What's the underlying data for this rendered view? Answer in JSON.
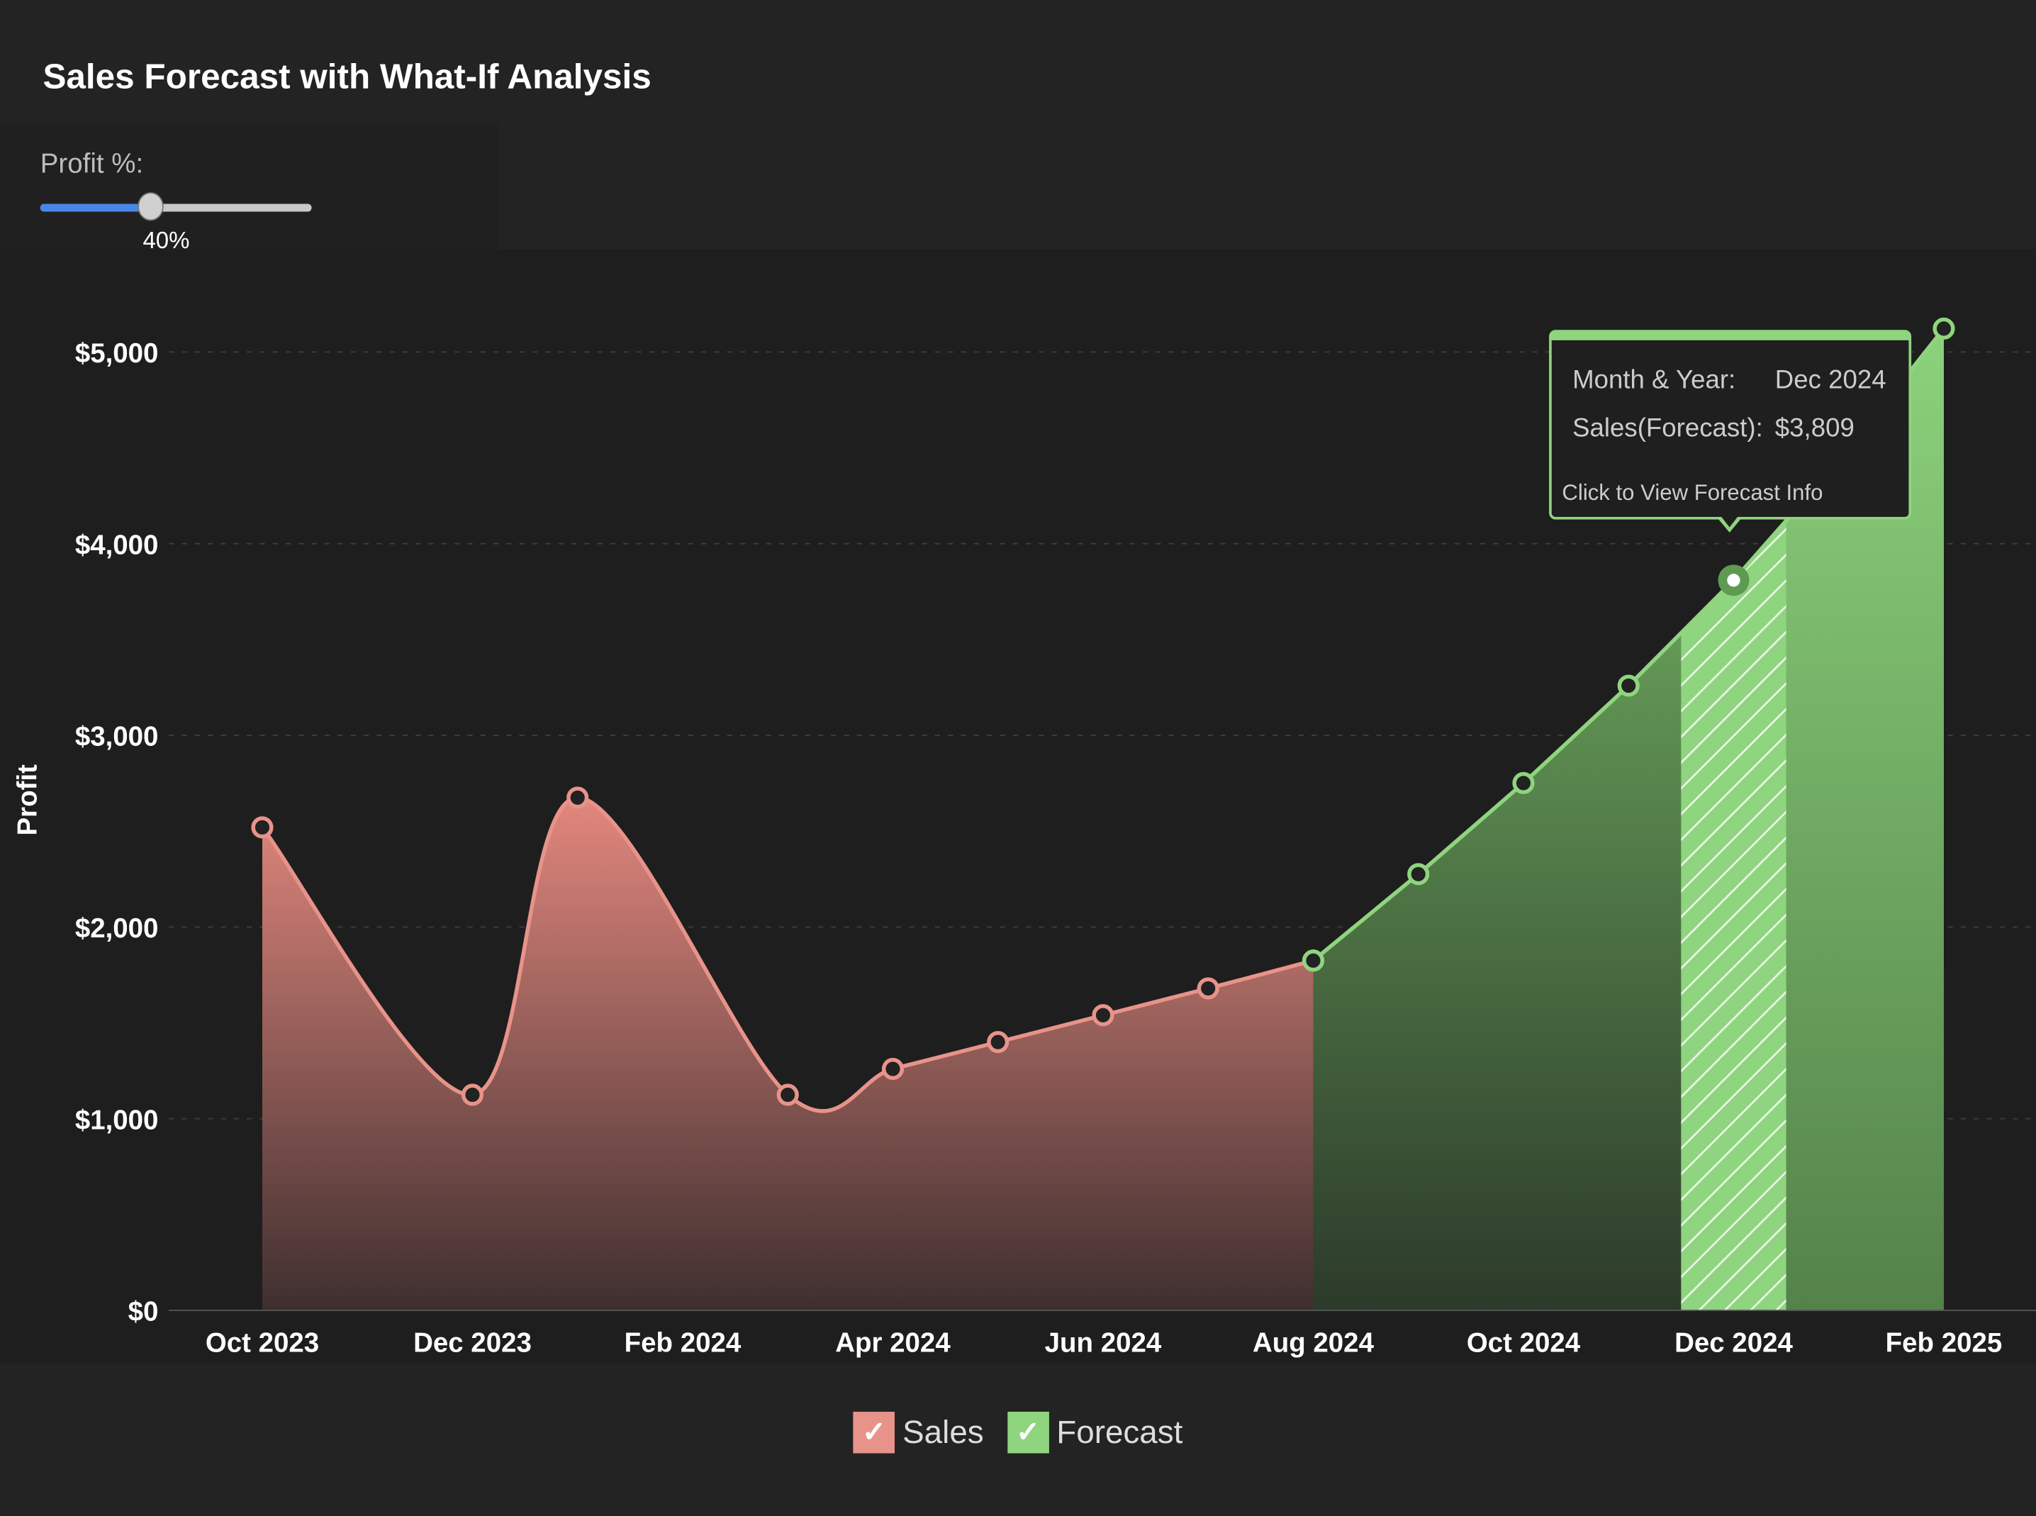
{
  "title": "Sales Forecast with What-If Analysis",
  "slider": {
    "label": "Profit %:",
    "value": 40,
    "value_label": "40%",
    "fill_color": "#4a86e8"
  },
  "tooltip": {
    "month_label": "Month & Year:",
    "month_value": "Dec 2024",
    "sales_label": "Sales(Forecast):",
    "sales_value": "$3,809",
    "link": "Click to View Forecast Info"
  },
  "legend": [
    {
      "label": "Sales",
      "checked": true,
      "color": "#e8938a",
      "check": "✓"
    },
    {
      "label": "Forecast",
      "checked": true,
      "color": "#8fd47e",
      "check": "✓"
    }
  ],
  "chart_data": {
    "type": "area",
    "title": "Sales Forecast with What-If Analysis",
    "ylabel": "Profit",
    "xlabel": "",
    "ylim": [
      0,
      5000
    ],
    "yticks": [
      "$0",
      "$1,000",
      "$2,000",
      "$3,000",
      "$4,000",
      "$5,000"
    ],
    "ytick_values": [
      0,
      1000,
      2000,
      3000,
      4000,
      5000
    ],
    "xticks": [
      "Oct 2023",
      "Dec 2023",
      "Feb 2024",
      "Apr 2024",
      "Jun 2024",
      "Aug 2024",
      "Oct 2024",
      "Dec 2024",
      "Feb 2025"
    ],
    "xtick_months": [
      0,
      2,
      4,
      6,
      8,
      10,
      12,
      14,
      16
    ],
    "grid": true,
    "legend_position": "bottom",
    "series": [
      {
        "name": "Sales",
        "color": "#e8938a",
        "points": [
          {
            "x": "Oct 2023",
            "m": 0,
            "y": 2520
          },
          {
            "x": "Dec 2023",
            "m": 2,
            "y": 1125
          },
          {
            "x": "Jan 2024",
            "m": 3,
            "y": 2675
          },
          {
            "x": "Mar 2024",
            "m": 5,
            "y": 1125
          },
          {
            "x": "Apr 2024",
            "m": 6,
            "y": 1260
          },
          {
            "x": "May 2024",
            "m": 7,
            "y": 1400
          },
          {
            "x": "Jun 2024",
            "m": 8,
            "y": 1540
          },
          {
            "x": "Jul 2024",
            "m": 9,
            "y": 1680
          },
          {
            "x": "Aug 2024",
            "m": 10,
            "y": 1825
          }
        ]
      },
      {
        "name": "Forecast",
        "color": "#8fd47e",
        "points": [
          {
            "x": "Aug 2024",
            "m": 10,
            "y": 1825
          },
          {
            "x": "Sep 2024",
            "m": 11,
            "y": 2276
          },
          {
            "x": "Oct 2024",
            "m": 12,
            "y": 2751
          },
          {
            "x": "Nov 2024",
            "m": 13,
            "y": 3259
          },
          {
            "x": "Dec 2024",
            "m": 14,
            "y": 3809
          },
          {
            "x": "Jan 2025",
            "m": 15,
            "y": 4431
          },
          {
            "x": "Feb 2025",
            "m": 16,
            "y": 5122
          }
        ]
      }
    ],
    "highlighted": {
      "x": "Dec 2024",
      "m": 14
    }
  }
}
